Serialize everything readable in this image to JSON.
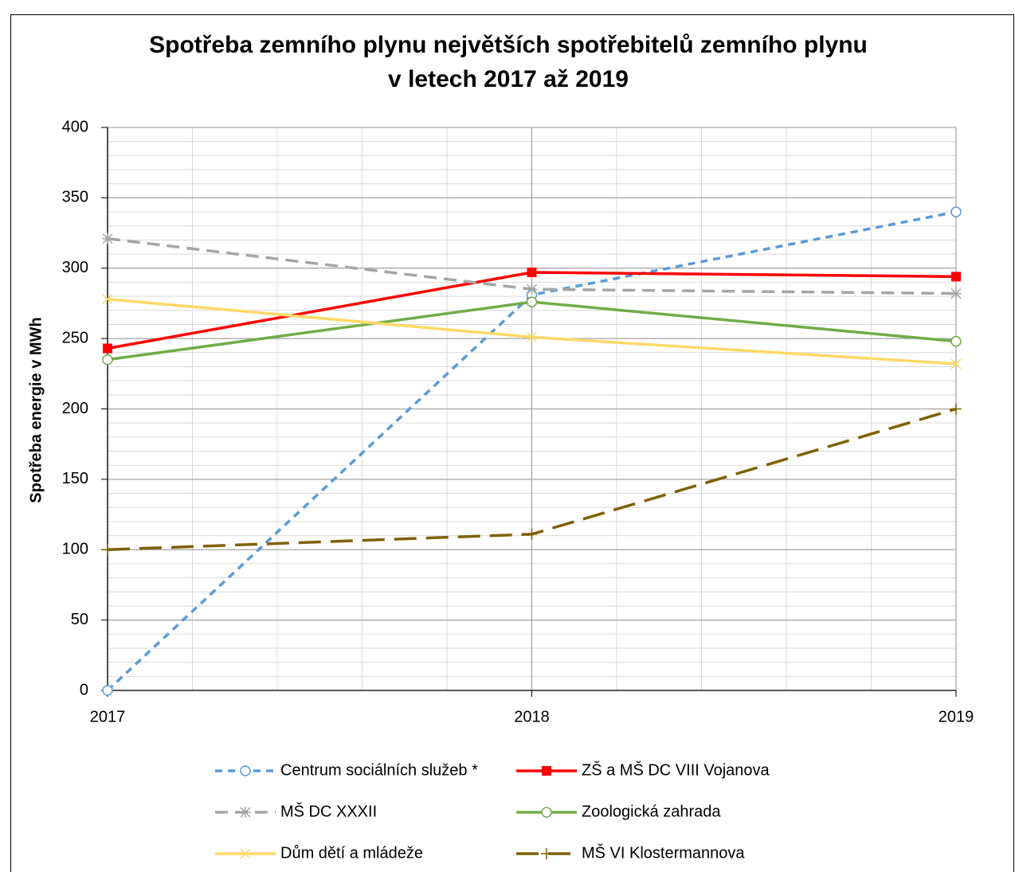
{
  "chart_data": {
    "type": "line",
    "title": [
      "Spotřeba zemního plynu největších spotřebitelů  zemního plynu",
      "v letech 2017 až 2019"
    ],
    "y_label": "Spotřeba energie v MWh",
    "x": [
      2017,
      2018,
      2019
    ],
    "xlim": [
      2017,
      2019
    ],
    "xticks": [
      2017,
      2018,
      2019
    ],
    "ylim": [
      0,
      400
    ],
    "yticks": [
      0,
      50,
      100,
      150,
      200,
      250,
      300,
      350,
      400
    ],
    "grid": true,
    "minor_grid": {
      "x": 0.2,
      "y": 10
    },
    "legend": "bottom",
    "series": [
      {
        "name": "Centrum sociálních služeb *",
        "color": "#5b9bd5",
        "dash": "short",
        "marker": "circle",
        "values": [
          0,
          281,
          340
        ]
      },
      {
        "name": "ZŠ a MŠ DC VIII Vojanova",
        "color": "#ff0000",
        "dash": "solid",
        "marker": "square",
        "values": [
          243,
          297,
          294
        ]
      },
      {
        "name": "MŠ DC XXXII",
        "color": "#a5a5a5",
        "dash": "medium",
        "marker": "asterisk",
        "values": [
          321,
          285,
          282
        ]
      },
      {
        "name": "Zoologická zahrada",
        "color": "#70ad47",
        "dash": "solid",
        "marker": "circle",
        "values": [
          235,
          276,
          248
        ]
      },
      {
        "name": "Dům dětí a mládeže",
        "color": "#ffd966",
        "dash": "solid",
        "marker": "x",
        "values": [
          278,
          251,
          232
        ]
      },
      {
        "name": "MŠ VI Klostermannova",
        "color": "#7f6000",
        "dash": "long",
        "marker": "plus",
        "values": [
          100,
          111,
          200
        ]
      }
    ]
  }
}
